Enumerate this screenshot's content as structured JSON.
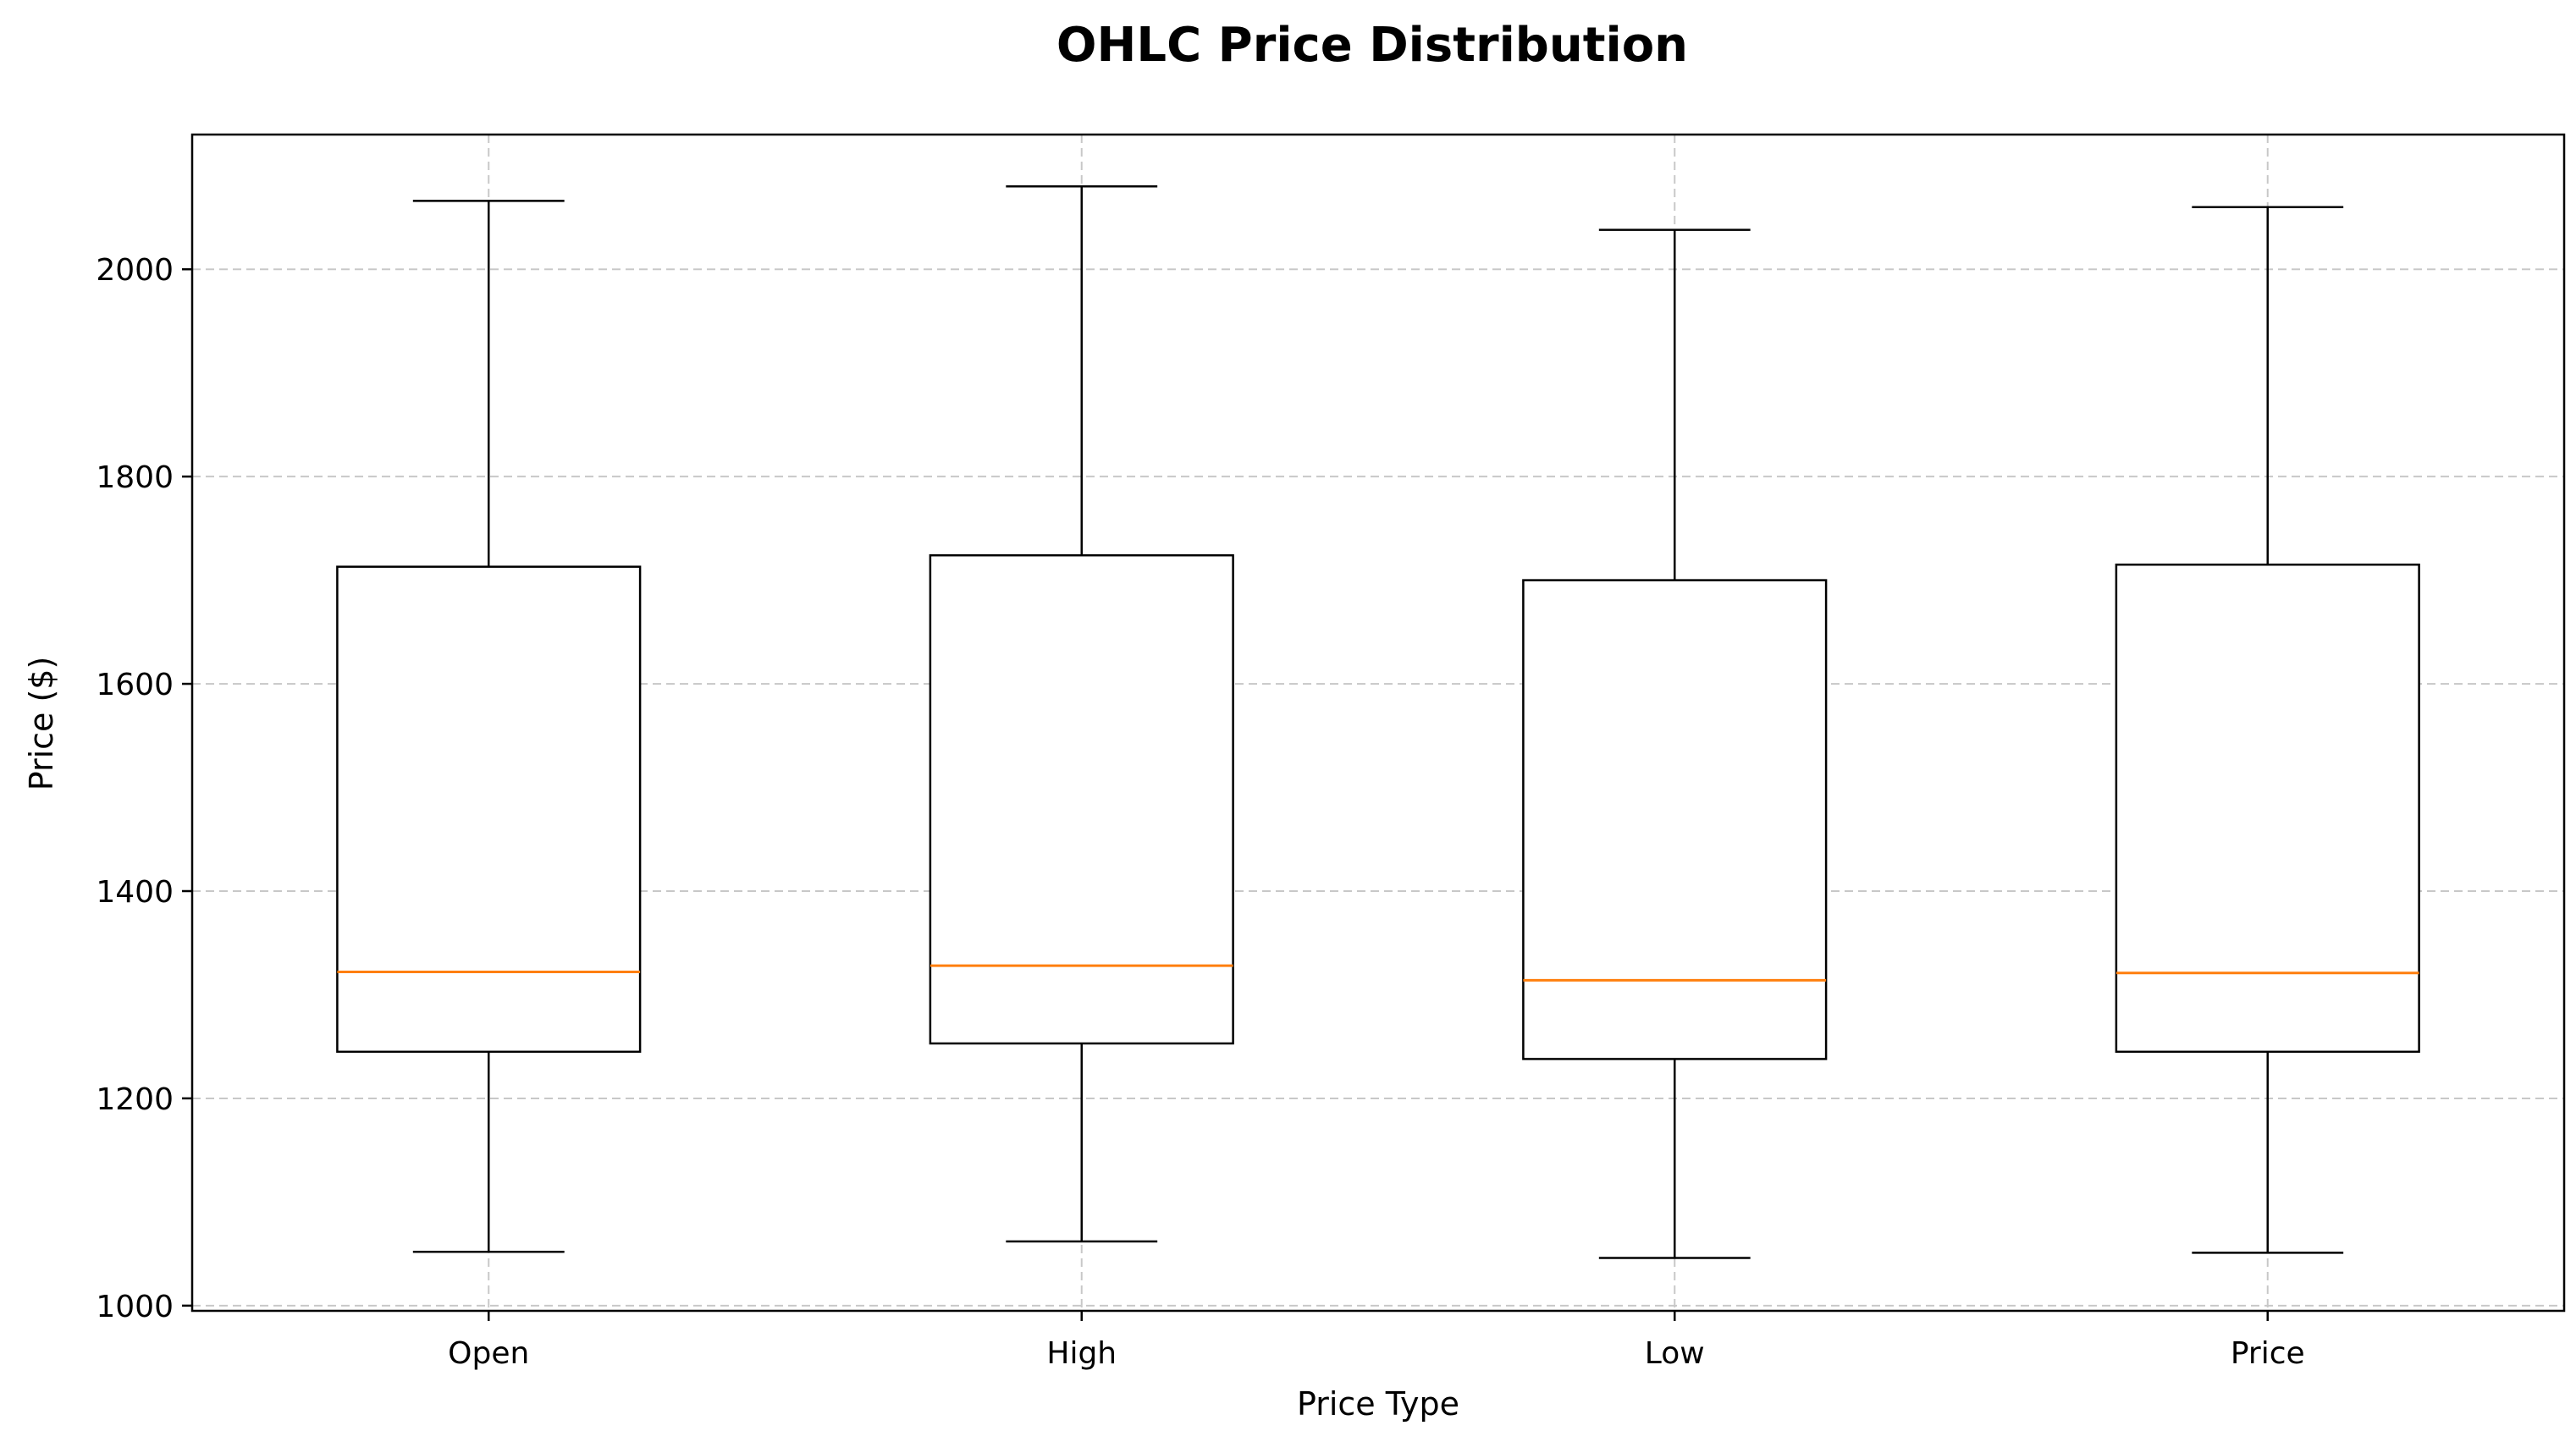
{
  "chart_data": {
    "type": "boxplot",
    "title": "OHLC Price Distribution",
    "xlabel": "Price Type",
    "ylabel": "Price ($)",
    "categories": [
      "Open",
      "High",
      "Low",
      "Price"
    ],
    "boxes": [
      {
        "whisker_low": 1052,
        "q1": 1245,
        "median": 1322,
        "q3": 1713,
        "whisker_high": 2066
      },
      {
        "whisker_low": 1062,
        "q1": 1253,
        "median": 1328,
        "q3": 1724,
        "whisker_high": 2080
      },
      {
        "whisker_low": 1046,
        "q1": 1238,
        "median": 1314,
        "q3": 1700,
        "whisker_high": 2038
      },
      {
        "whisker_low": 1051,
        "q1": 1245,
        "median": 1321,
        "q3": 1715,
        "whisker_high": 2060
      }
    ],
    "ylim": [
      995,
      2130
    ],
    "yticks": [
      1000,
      1200,
      1400,
      1600,
      1800,
      2000
    ],
    "grid": true,
    "colors": {
      "box": "#000000",
      "median": "#ff7f0e",
      "grid": "#c8c8c8"
    }
  }
}
